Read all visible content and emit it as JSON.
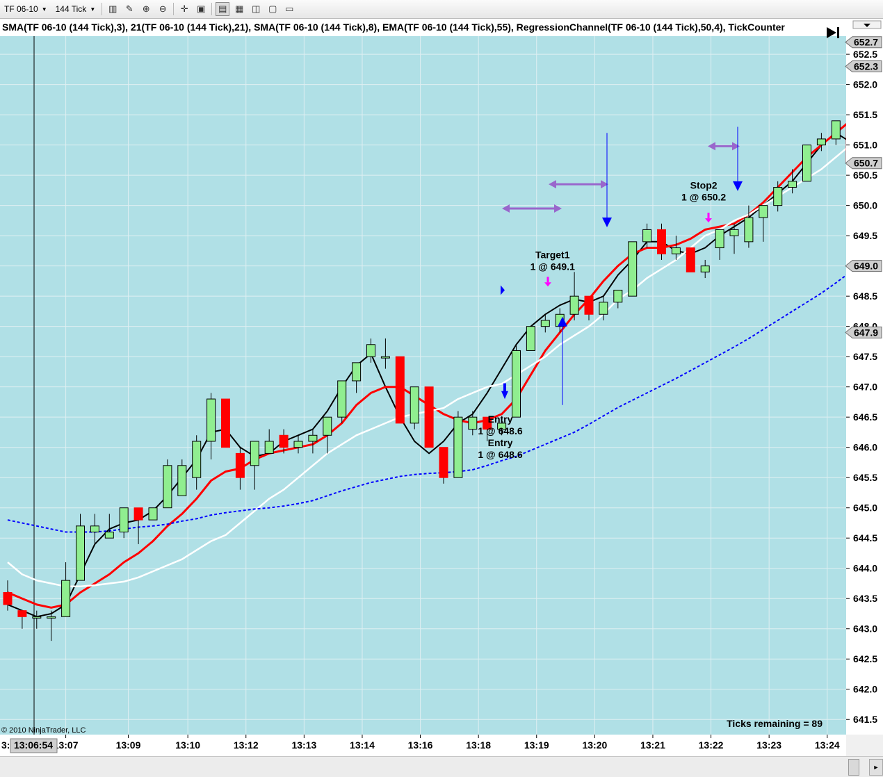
{
  "toolbar": {
    "instrument": "TF 06-10",
    "interval": "144 Tick",
    "icons": [
      "bar-type-icon",
      "drawing-pencil-icon",
      "zoom-in-icon",
      "zoom-out-icon",
      "crosshair-icon",
      "data-box-icon",
      "strategies-icon",
      "indicators-icon",
      "chart-trader-icon",
      "properties-icon",
      "sheet-icon"
    ]
  },
  "header_label": "SMA(TF 06-10 (144  Tick),3),  21(TF 06-10 (144  Tick),21),  SMA(TF 06-10 (144  Tick),8),  EMA(TF 06-10 (144  Tick),55),  RegressionChannel(TF 06-10 (144  Tick),50,4),  TickCounter",
  "copyright": "© 2010 NinjaTrader, LLC",
  "ticks_remaining": "Ticks remaining = 89",
  "cursor_time": "13:06:54",
  "cursor_left_label": "3:",
  "colors": {
    "background": "#b0e0e6",
    "up_candle": "#90ee90",
    "down_candle": "#ff0000",
    "sma3": "#000000",
    "ma21": "#ff0000",
    "sma8": "#ffffff",
    "ema55": "#0000ff",
    "arrows": "#9966cc"
  },
  "chart_data": {
    "type": "candlestick",
    "ylim": [
      641.25,
      652.8
    ],
    "yticks": [
      641.5,
      642.0,
      642.5,
      643.0,
      643.5,
      644.0,
      644.5,
      645.0,
      645.5,
      646.0,
      646.5,
      647.0,
      647.5,
      648.0,
      648.5,
      649.0,
      649.5,
      650.0,
      650.5,
      651.0,
      651.5,
      652.0,
      652.5
    ],
    "ytick_labels": [
      "641.5",
      "642.0",
      "642.5",
      "643.0",
      "643.5",
      "644.0",
      "644.5",
      "645.0",
      "645.5",
      "646.0",
      "646.5",
      "647.0",
      "647.5",
      "648.0",
      "648.5",
      "649.0",
      "649.5",
      "650.0",
      "650.5",
      "651.0",
      "651.5",
      "652.0",
      "652.5"
    ],
    "price_markers": [
      {
        "value": 652.7,
        "label": "652.7",
        "style": "gray"
      },
      {
        "value": 652.3,
        "label": "652.3",
        "style": "gray"
      },
      {
        "value": 650.7,
        "label": "650.7",
        "style": "gray"
      },
      {
        "value": 649.0,
        "label": "649.0",
        "style": "gray"
      },
      {
        "value": 647.9,
        "label": "647.9",
        "style": "gray"
      }
    ],
    "xticks": [
      {
        "bar": 4,
        "label": "13:07"
      },
      {
        "bar": 8.3,
        "label": "13:09"
      },
      {
        "bar": 12.4,
        "label": "13:10"
      },
      {
        "bar": 16.4,
        "label": "13:12"
      },
      {
        "bar": 20.4,
        "label": "13:13"
      },
      {
        "bar": 24.4,
        "label": "13:14"
      },
      {
        "bar": 28.4,
        "label": "13:16"
      },
      {
        "bar": 32.4,
        "label": "13:18"
      },
      {
        "bar": 36.4,
        "label": "13:19"
      },
      {
        "bar": 40.4,
        "label": "13:20"
      },
      {
        "bar": 44.4,
        "label": "13:21"
      },
      {
        "bar": 48.4,
        "label": "13:22"
      },
      {
        "bar": 52.4,
        "label": "13:23"
      },
      {
        "bar": 56.4,
        "label": "13:24"
      }
    ],
    "bars": [
      {
        "o": 643.6,
        "h": 643.8,
        "l": 643.3,
        "c": 643.4
      },
      {
        "o": 643.3,
        "h": 643.3,
        "l": 643.0,
        "c": 643.2
      },
      {
        "o": 643.2,
        "h": 643.3,
        "l": 643.0,
        "c": 643.2
      },
      {
        "o": 643.2,
        "h": 643.3,
        "l": 642.8,
        "c": 643.2
      },
      {
        "o": 643.2,
        "h": 644.1,
        "l": 643.2,
        "c": 643.8
      },
      {
        "o": 643.8,
        "h": 644.9,
        "l": 643.8,
        "c": 644.7
      },
      {
        "o": 644.6,
        "h": 644.9,
        "l": 644.4,
        "c": 644.7
      },
      {
        "o": 644.5,
        "h": 644.9,
        "l": 644.5,
        "c": 644.6
      },
      {
        "o": 644.6,
        "h": 645.0,
        "l": 644.5,
        "c": 645.0
      },
      {
        "o": 645.0,
        "h": 645.0,
        "l": 644.4,
        "c": 644.8
      },
      {
        "o": 644.8,
        "h": 645.0,
        "l": 644.8,
        "c": 645.0
      },
      {
        "o": 645.0,
        "h": 645.8,
        "l": 645.0,
        "c": 645.7
      },
      {
        "o": 645.2,
        "h": 645.8,
        "l": 645.2,
        "c": 645.7
      },
      {
        "o": 645.5,
        "h": 646.2,
        "l": 645.3,
        "c": 646.1
      },
      {
        "o": 646.1,
        "h": 646.9,
        "l": 645.8,
        "c": 646.8
      },
      {
        "o": 646.8,
        "h": 646.8,
        "l": 646.0,
        "c": 646.0
      },
      {
        "o": 645.9,
        "h": 646.0,
        "l": 645.3,
        "c": 645.5
      },
      {
        "o": 645.7,
        "h": 646.1,
        "l": 645.3,
        "c": 646.1
      },
      {
        "o": 645.9,
        "h": 646.3,
        "l": 645.9,
        "c": 646.1
      },
      {
        "o": 646.2,
        "h": 646.3,
        "l": 645.9,
        "c": 646.0
      },
      {
        "o": 646.0,
        "h": 646.2,
        "l": 645.9,
        "c": 646.1
      },
      {
        "o": 646.1,
        "h": 646.3,
        "l": 645.9,
        "c": 646.2
      },
      {
        "o": 646.2,
        "h": 646.5,
        "l": 645.9,
        "c": 646.5
      },
      {
        "o": 646.5,
        "h": 647.1,
        "l": 646.4,
        "c": 647.1
      },
      {
        "o": 647.1,
        "h": 647.4,
        "l": 646.9,
        "c": 647.4
      },
      {
        "o": 647.5,
        "h": 647.8,
        "l": 647.4,
        "c": 647.7
      },
      {
        "o": 647.5,
        "h": 647.8,
        "l": 647.3,
        "c": 647.5
      },
      {
        "o": 647.5,
        "h": 647.5,
        "l": 646.4,
        "c": 646.4
      },
      {
        "o": 646.4,
        "h": 647.0,
        "l": 646.3,
        "c": 647.0
      },
      {
        "o": 647.0,
        "h": 647.0,
        "l": 646.0,
        "c": 646.0
      },
      {
        "o": 646.0,
        "h": 646.0,
        "l": 645.4,
        "c": 645.5
      },
      {
        "o": 645.5,
        "h": 646.6,
        "l": 645.5,
        "c": 646.5
      },
      {
        "o": 646.3,
        "h": 646.6,
        "l": 646.2,
        "c": 646.5
      },
      {
        "o": 646.5,
        "h": 646.5,
        "l": 646.1,
        "c": 646.3
      },
      {
        "o": 646.3,
        "h": 646.5,
        "l": 646.2,
        "c": 646.4
      },
      {
        "o": 646.5,
        "h": 647.7,
        "l": 646.5,
        "c": 647.6
      },
      {
        "o": 647.6,
        "h": 648.0,
        "l": 647.6,
        "c": 648.0
      },
      {
        "o": 648.0,
        "h": 648.2,
        "l": 647.9,
        "c": 648.1
      },
      {
        "o": 648.0,
        "h": 648.3,
        "l": 647.9,
        "c": 648.2
      },
      {
        "o": 648.2,
        "h": 648.9,
        "l": 648.1,
        "c": 648.5
      },
      {
        "o": 648.5,
        "h": 648.5,
        "l": 648.1,
        "c": 648.2
      },
      {
        "o": 648.2,
        "h": 648.5,
        "l": 648.1,
        "c": 648.4
      },
      {
        "o": 648.4,
        "h": 648.6,
        "l": 648.3,
        "c": 648.6
      },
      {
        "o": 648.5,
        "h": 649.4,
        "l": 648.5,
        "c": 649.4
      },
      {
        "o": 649.4,
        "h": 649.7,
        "l": 649.3,
        "c": 649.6
      },
      {
        "o": 649.6,
        "h": 649.7,
        "l": 649.1,
        "c": 649.2
      },
      {
        "o": 649.2,
        "h": 649.5,
        "l": 649.1,
        "c": 649.3
      },
      {
        "o": 649.3,
        "h": 649.3,
        "l": 648.9,
        "c": 648.9
      },
      {
        "o": 648.9,
        "h": 649.1,
        "l": 648.8,
        "c": 649.0
      },
      {
        "o": 649.3,
        "h": 649.6,
        "l": 649.1,
        "c": 649.6
      },
      {
        "o": 649.5,
        "h": 649.7,
        "l": 649.2,
        "c": 649.6
      },
      {
        "o": 649.4,
        "h": 650.0,
        "l": 649.3,
        "c": 649.8
      },
      {
        "o": 649.8,
        "h": 650.0,
        "l": 649.4,
        "c": 650.0
      },
      {
        "o": 650.0,
        "h": 650.4,
        "l": 649.9,
        "c": 650.3
      },
      {
        "o": 650.3,
        "h": 650.6,
        "l": 650.2,
        "c": 650.4
      },
      {
        "o": 650.4,
        "h": 651.0,
        "l": 650.4,
        "c": 651.0
      },
      {
        "o": 651.0,
        "h": 651.2,
        "l": 650.9,
        "c": 651.1
      },
      {
        "o": 651.1,
        "h": 651.4,
        "l": 651.0,
        "c": 651.4
      },
      {
        "o": 651.3,
        "h": 651.4,
        "l": 650.6,
        "c": 650.7
      }
    ],
    "series": [
      {
        "key": "sma3",
        "width": 2,
        "dash": "",
        "values": [
          643.4,
          643.3,
          643.2,
          643.25,
          643.4,
          643.9,
          644.4,
          644.65,
          644.75,
          644.8,
          644.95,
          645.2,
          645.5,
          645.8,
          646.25,
          646.3,
          646.0,
          645.85,
          645.9,
          646.1,
          646.2,
          646.3,
          646.6,
          647.0,
          647.35,
          647.55,
          647.0,
          646.5,
          646.1,
          645.9,
          646.1,
          646.4,
          646.55,
          646.9,
          647.3,
          647.7,
          648.0,
          648.2,
          648.35,
          648.45,
          648.4,
          648.5,
          648.85,
          649.1,
          649.4,
          649.4,
          649.25,
          649.2,
          649.3,
          649.5,
          649.65,
          649.8,
          650.0,
          650.2,
          650.4,
          650.7,
          651.0,
          651.2,
          651.05
        ],
        "name": ""
      },
      {
        "key": "ma21",
        "width": 3,
        "dash": "",
        "values": [
          643.6,
          643.5,
          643.4,
          643.35,
          643.4,
          643.6,
          643.75,
          643.9,
          644.1,
          644.25,
          644.45,
          644.7,
          644.9,
          645.15,
          645.45,
          645.6,
          645.65,
          645.8,
          645.9,
          645.95,
          646.0,
          646.05,
          646.2,
          646.4,
          646.7,
          646.9,
          647.0,
          647.0,
          646.85,
          646.7,
          646.55,
          646.45,
          646.4,
          646.45,
          646.55,
          646.8,
          647.2,
          647.6,
          647.9,
          648.2,
          648.45,
          648.75,
          649.0,
          649.2,
          649.3,
          649.3,
          649.35,
          649.45,
          649.6,
          649.65,
          649.7,
          649.85,
          650.05,
          650.3,
          650.55,
          650.8,
          651.0,
          651.2,
          651.4
        ],
        "name": ""
      },
      {
        "key": "sma8",
        "width": 2.5,
        "dash": "",
        "values": [
          644.1,
          643.9,
          643.8,
          643.75,
          643.7,
          643.7,
          643.72,
          643.75,
          643.78,
          643.85,
          643.95,
          644.05,
          644.15,
          644.3,
          644.45,
          644.55,
          644.75,
          644.95,
          645.15,
          645.3,
          645.5,
          645.7,
          645.9,
          646.05,
          646.2,
          646.3,
          646.4,
          646.5,
          646.55,
          646.6,
          646.65,
          646.8,
          646.9,
          647.0,
          647.05,
          647.2,
          647.35,
          647.5,
          647.7,
          647.85,
          648.0,
          648.2,
          648.45,
          648.6,
          648.8,
          648.95,
          649.1,
          649.3,
          649.5,
          649.6,
          649.75,
          649.85,
          650.0,
          650.15,
          650.3,
          650.45,
          650.6,
          650.8,
          651.0
        ],
        "name": ""
      },
      {
        "key": "ema55",
        "width": 2,
        "dash": "4,3",
        "values": [
          644.8,
          644.75,
          644.7,
          644.65,
          644.6,
          644.6,
          644.6,
          644.62,
          644.65,
          644.68,
          644.7,
          644.73,
          644.78,
          644.82,
          644.88,
          644.92,
          644.95,
          644.98,
          645.0,
          645.03,
          645.07,
          645.12,
          645.2,
          645.28,
          645.35,
          645.42,
          645.47,
          645.52,
          645.55,
          645.57,
          645.58,
          645.6,
          645.63,
          645.7,
          645.78,
          645.85,
          645.95,
          646.05,
          646.15,
          646.25,
          646.38,
          646.52,
          646.66,
          646.78,
          646.9,
          647.02,
          647.14,
          647.27,
          647.4,
          647.53,
          647.66,
          647.8,
          647.95,
          648.1,
          648.25,
          648.4,
          648.55,
          648.72,
          648.9
        ],
        "name": ""
      }
    ],
    "annotations": [
      {
        "bar": 37.5,
        "y": 648.85,
        "kind": "label",
        "lines": [
          "Target1",
          "1 @ 649.1"
        ],
        "anchor": "above"
      },
      {
        "bar": 33.9,
        "y": 646.55,
        "kind": "label",
        "lines": [
          "Entry",
          "1 @ 648.6"
        ],
        "anchor": "below"
      },
      {
        "bar": 33.9,
        "y": 646.16,
        "kind": "label",
        "lines": [
          "Entry",
          "1 @ 648.6"
        ],
        "anchor": "below"
      },
      {
        "bar": 47.9,
        "y": 650.0,
        "kind": "label",
        "lines": [
          "Stop2",
          "1 @ 650.2"
        ],
        "anchor": "above"
      }
    ]
  }
}
